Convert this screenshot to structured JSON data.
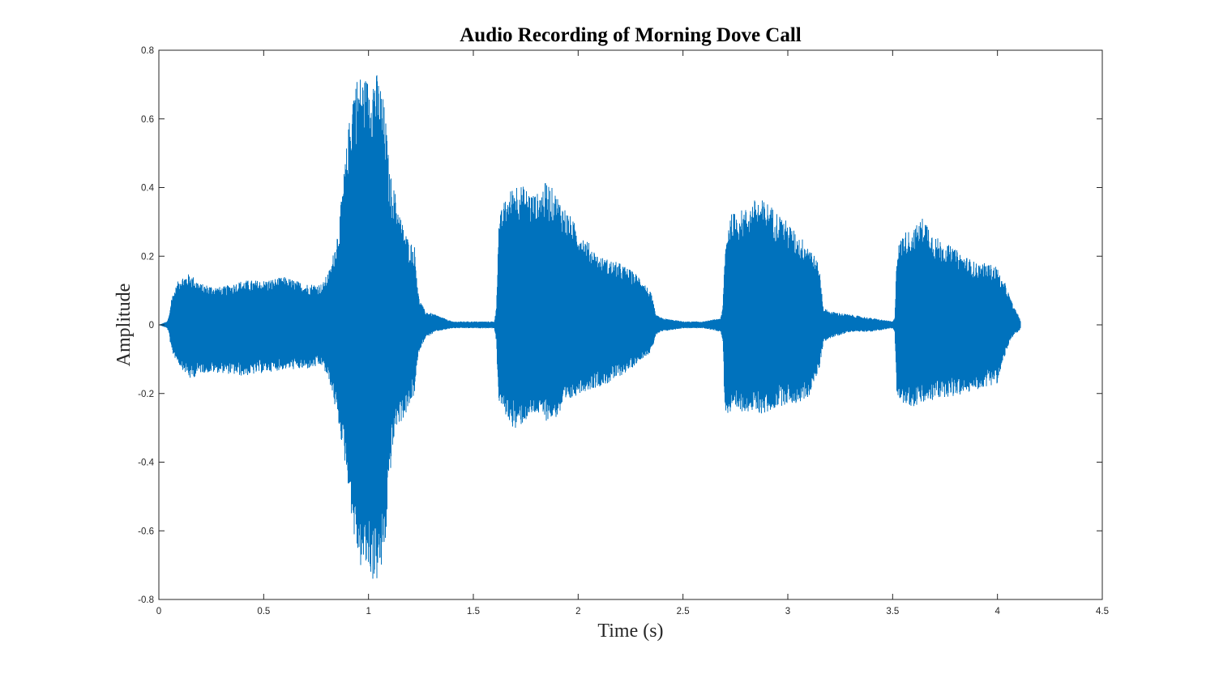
{
  "chart_data": {
    "type": "line",
    "title": "Audio Recording of Morning Dove Call",
    "xlabel": "Time (s)",
    "ylabel": "Amplitude",
    "xlim": [
      0,
      4.5
    ],
    "ylim": [
      -0.8,
      0.8
    ],
    "xticks": [
      0,
      0.5,
      1,
      1.5,
      2,
      2.5,
      3,
      3.5,
      4,
      4.5
    ],
    "xtick_labels": [
      "0",
      "0.5",
      "1",
      "1.5",
      "2",
      "2.5",
      "3",
      "3.5",
      "4",
      "4.5"
    ],
    "yticks": [
      0.8,
      0.6,
      0.4,
      0.2,
      0,
      -0.2,
      -0.4,
      -0.6,
      -0.8
    ],
    "ytick_labels": [
      "0.8",
      "0.6",
      "0.4",
      "0.2",
      "0",
      "-0.2",
      "-0.4",
      "-0.6",
      "-0.8"
    ],
    "grid": false,
    "line_color": "#0072BD",
    "series": [
      {
        "description": "waveform envelope (max, min amplitude) over time",
        "x": [
          0.0,
          0.04,
          0.05,
          0.06,
          0.1,
          0.15,
          0.2,
          0.3,
          0.4,
          0.5,
          0.6,
          0.7,
          0.78,
          0.82,
          0.86,
          0.9,
          0.93,
          0.96,
          1.0,
          1.03,
          1.06,
          1.08,
          1.1,
          1.13,
          1.16,
          1.19,
          1.22,
          1.24,
          1.27,
          1.32,
          1.4,
          1.5,
          1.6,
          1.61,
          1.62,
          1.64,
          1.7,
          1.75,
          1.8,
          1.85,
          1.9,
          1.95,
          2.0,
          2.05,
          2.1,
          2.15,
          2.2,
          2.25,
          2.3,
          2.35,
          2.37,
          2.4,
          2.5,
          2.6,
          2.68,
          2.69,
          2.7,
          2.72,
          2.75,
          2.8,
          2.85,
          2.9,
          2.95,
          3.0,
          3.05,
          3.1,
          3.15,
          3.17,
          3.2,
          3.3,
          3.4,
          3.5,
          3.51,
          3.52,
          3.55,
          3.6,
          3.65,
          3.7,
          3.75,
          3.8,
          3.85,
          3.9,
          3.95,
          4.0,
          4.02,
          4.04,
          4.06,
          4.08,
          4.1,
          4.11
        ],
        "max": [
          0.0,
          0.01,
          0.03,
          0.08,
          0.14,
          0.15,
          0.12,
          0.11,
          0.13,
          0.13,
          0.14,
          0.12,
          0.12,
          0.17,
          0.3,
          0.55,
          0.72,
          0.73,
          0.72,
          0.75,
          0.7,
          0.62,
          0.45,
          0.38,
          0.3,
          0.25,
          0.23,
          0.08,
          0.04,
          0.03,
          0.01,
          0.01,
          0.01,
          0.05,
          0.3,
          0.35,
          0.42,
          0.4,
          0.38,
          0.42,
          0.38,
          0.33,
          0.28,
          0.24,
          0.2,
          0.19,
          0.18,
          0.16,
          0.14,
          0.09,
          0.03,
          0.02,
          0.01,
          0.01,
          0.02,
          0.05,
          0.22,
          0.32,
          0.33,
          0.34,
          0.37,
          0.36,
          0.33,
          0.3,
          0.26,
          0.24,
          0.17,
          0.05,
          0.04,
          0.03,
          0.02,
          0.01,
          0.02,
          0.22,
          0.27,
          0.28,
          0.32,
          0.26,
          0.24,
          0.22,
          0.2,
          0.18,
          0.18,
          0.17,
          0.13,
          0.12,
          0.08,
          0.05,
          0.03,
          0.01
        ],
        "min": [
          0.0,
          -0.01,
          -0.03,
          -0.08,
          -0.12,
          -0.16,
          -0.14,
          -0.14,
          -0.15,
          -0.14,
          -0.13,
          -0.13,
          -0.12,
          -0.18,
          -0.3,
          -0.45,
          -0.62,
          -0.71,
          -0.72,
          -0.76,
          -0.73,
          -0.65,
          -0.45,
          -0.3,
          -0.28,
          -0.25,
          -0.2,
          -0.08,
          -0.04,
          -0.02,
          -0.01,
          -0.01,
          -0.01,
          -0.05,
          -0.22,
          -0.25,
          -0.31,
          -0.28,
          -0.26,
          -0.28,
          -0.27,
          -0.23,
          -0.2,
          -0.19,
          -0.18,
          -0.17,
          -0.15,
          -0.13,
          -0.1,
          -0.08,
          -0.03,
          -0.02,
          -0.01,
          -0.01,
          -0.02,
          -0.05,
          -0.25,
          -0.27,
          -0.26,
          -0.25,
          -0.26,
          -0.26,
          -0.24,
          -0.23,
          -0.23,
          -0.21,
          -0.13,
          -0.05,
          -0.04,
          -0.02,
          -0.02,
          -0.01,
          -0.02,
          -0.2,
          -0.23,
          -0.24,
          -0.23,
          -0.22,
          -0.21,
          -0.21,
          -0.2,
          -0.19,
          -0.18,
          -0.17,
          -0.13,
          -0.08,
          -0.05,
          -0.03,
          -0.02,
          -0.01
        ]
      }
    ]
  }
}
